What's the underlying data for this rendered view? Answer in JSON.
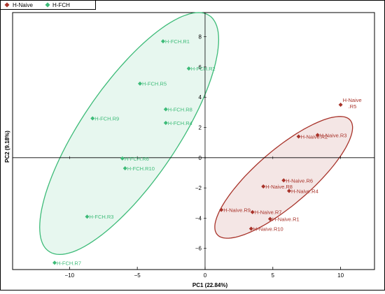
{
  "chart_data": {
    "type": "scatter",
    "xlabel": "PC1 (22.84%)",
    "ylabel": "PC2 (9.18%)",
    "xlim": [
      -14.2,
      12.5
    ],
    "ylim": [
      -7.4,
      9.6
    ],
    "x_ticks": [
      -10,
      -5,
      0,
      5,
      10
    ],
    "y_ticks": [
      -6,
      -4,
      -2,
      0,
      2,
      4,
      6,
      8
    ],
    "grid": false,
    "legend_position": "top-left",
    "series": [
      {
        "name": "H-Naive",
        "color": "#a8332a",
        "marker": "diamond",
        "points": [
          {
            "label": "H-Naive.R1",
            "x": 4.8,
            "y": -4.05
          },
          {
            "label": "H-Naive.R2",
            "x": 6.9,
            "y": 1.4
          },
          {
            "label": "H-Naive.R3",
            "x": 8.3,
            "y": 1.5
          },
          {
            "label": "H-Naive.R4",
            "x": 6.2,
            "y": -2.2
          },
          {
            "label": "H-Naive.R5",
            "label_lines": [
              "H-Naive",
              ".R5"
            ],
            "x": 10.0,
            "y": 3.5
          },
          {
            "label": "H-Naive.R6",
            "x": 5.8,
            "y": -1.5
          },
          {
            "label": "H-Naive.R7",
            "x": 3.5,
            "y": -3.6
          },
          {
            "label": "H-Naive.R8",
            "x": 4.3,
            "y": -1.9
          },
          {
            "label": "H-Naive.R9",
            "x": 1.2,
            "y": -3.45
          },
          {
            "label": "H-Naive.R10",
            "x": 3.4,
            "y": -4.7
          }
        ],
        "ellipse": {
          "cx": 5.8,
          "cy": -1.3,
          "semi_major": 6.2,
          "semi_minor": 1.9,
          "angle_deg": 37
        }
      },
      {
        "name": "H-FCH",
        "color": "#3dbb78",
        "marker": "diamond",
        "points": [
          {
            "label": "H-FCH.R1",
            "x": -3.1,
            "y": 7.7
          },
          {
            "label": "H-FCH.R2",
            "x": -1.2,
            "y": 5.9
          },
          {
            "label": "H-FCH.R3",
            "x": -8.7,
            "y": -3.9
          },
          {
            "label": "H-FCH.R4",
            "x": -2.9,
            "y": 2.3
          },
          {
            "label": "H-FCH.R5",
            "x": -4.8,
            "y": 4.9
          },
          {
            "label": "H-FCH.R6",
            "x": -6.1,
            "y": -0.05
          },
          {
            "label": "H-FCH.R7",
            "x": -11.1,
            "y": -6.95
          },
          {
            "label": "H-FCH.R8",
            "x": -2.9,
            "y": 3.2
          },
          {
            "label": "H-FCH.R9",
            "x": -8.3,
            "y": 2.6
          },
          {
            "label": "H-FCH.R10",
            "x": -5.9,
            "y": -0.7
          }
        ],
        "ellipse": {
          "cx": -5.6,
          "cy": 1.6,
          "semi_major": 9.8,
          "semi_minor": 3.4,
          "angle_deg": 52
        }
      }
    ]
  }
}
